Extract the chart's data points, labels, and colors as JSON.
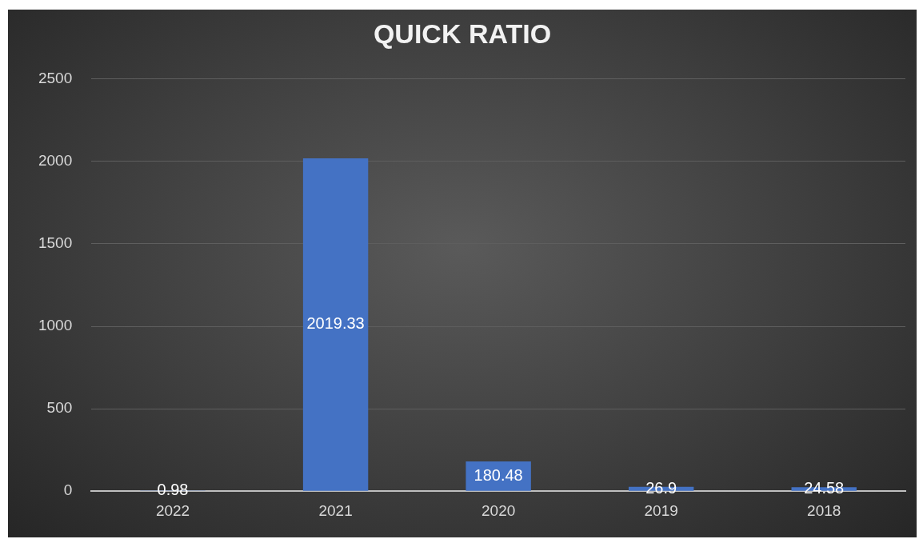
{
  "chart_data": {
    "type": "bar",
    "title": "QUICK RATIO",
    "categories": [
      "2022",
      "2021",
      "2020",
      "2019",
      "2018"
    ],
    "values": [
      0.98,
      2019.33,
      180.48,
      26.9,
      24.58
    ],
    "color": "#4472c4",
    "ylim": [
      0,
      2500
    ],
    "yticks": [
      0,
      500,
      1000,
      1500,
      2000,
      2500
    ],
    "grid": "y",
    "data_labels": true
  }
}
